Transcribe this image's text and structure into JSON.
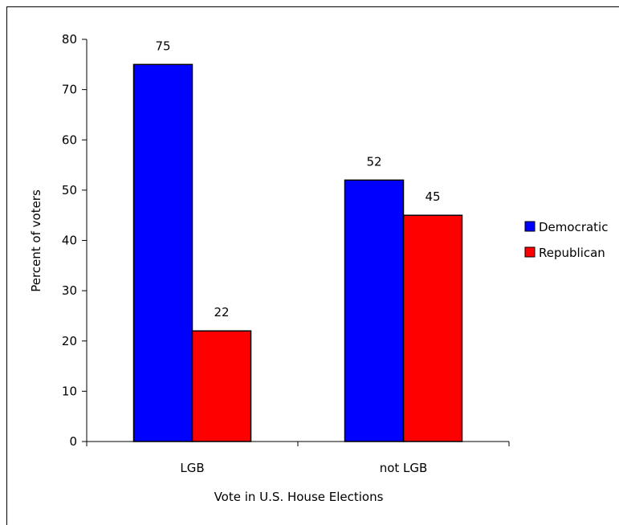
{
  "chart_data": {
    "type": "bar",
    "title": "",
    "xlabel": "Vote in U.S. House Elections",
    "ylabel": "Percent of voters",
    "categories": [
      "LGB",
      "not LGB"
    ],
    "series": [
      {
        "name": "Democratic",
        "values": [
          75,
          52
        ],
        "color": "#0000ff"
      },
      {
        "name": "Republican",
        "values": [
          22,
          45
        ],
        "color": "#ff0000"
      }
    ],
    "ylim": [
      0,
      80
    ],
    "yticks": [
      0,
      10,
      20,
      30,
      40,
      50,
      60,
      70,
      80
    ],
    "grid": false,
    "legend_position": "right"
  }
}
